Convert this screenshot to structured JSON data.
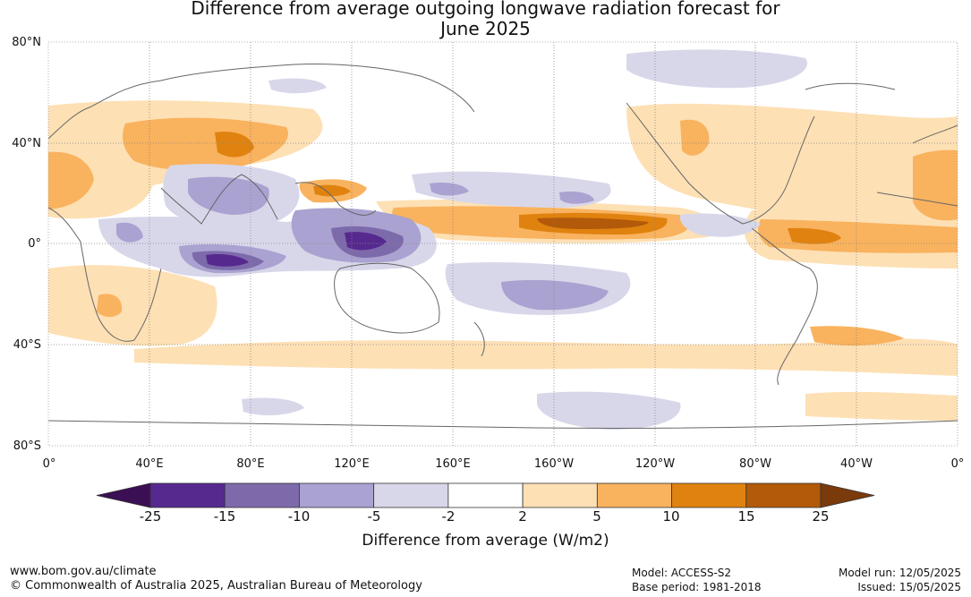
{
  "title_line1": "Difference from average outgoing longwave radiation forecast for",
  "title_line2": "June 2025",
  "lat_labels": [
    "80°N",
    "40°N",
    "0°",
    "40°S",
    "80°S"
  ],
  "lon_labels": [
    "0°",
    "40°E",
    "80°E",
    "120°E",
    "160°E",
    "160°W",
    "120°W",
    "80°W",
    "40°W",
    "0°"
  ],
  "colorbar": {
    "ticks": [
      "-25",
      "-15",
      "-10",
      "-5",
      "-2",
      "2",
      "5",
      "10",
      "15",
      "25"
    ],
    "colors": [
      "#3b0f54",
      "#56298f",
      "#7d6aab",
      "#aaa2d0",
      "#d8d7ea",
      "#ffffff",
      "#fde0b4",
      "#f9b25e",
      "#e0820f",
      "#b25a09",
      "#7b3a0b"
    ],
    "title": "Difference from average (W/m2)"
  },
  "footer": {
    "url": "www.bom.gov.au/climate",
    "copyright": "© Commonwealth of Australia 2025, Australian Bureau of Meteorology",
    "model": "Model: ACCESS-S2",
    "base_period": "Base period: 1981-2018",
    "model_run": "Model run: 12/05/2025",
    "issued": "Issued: 15/05/2025"
  }
}
